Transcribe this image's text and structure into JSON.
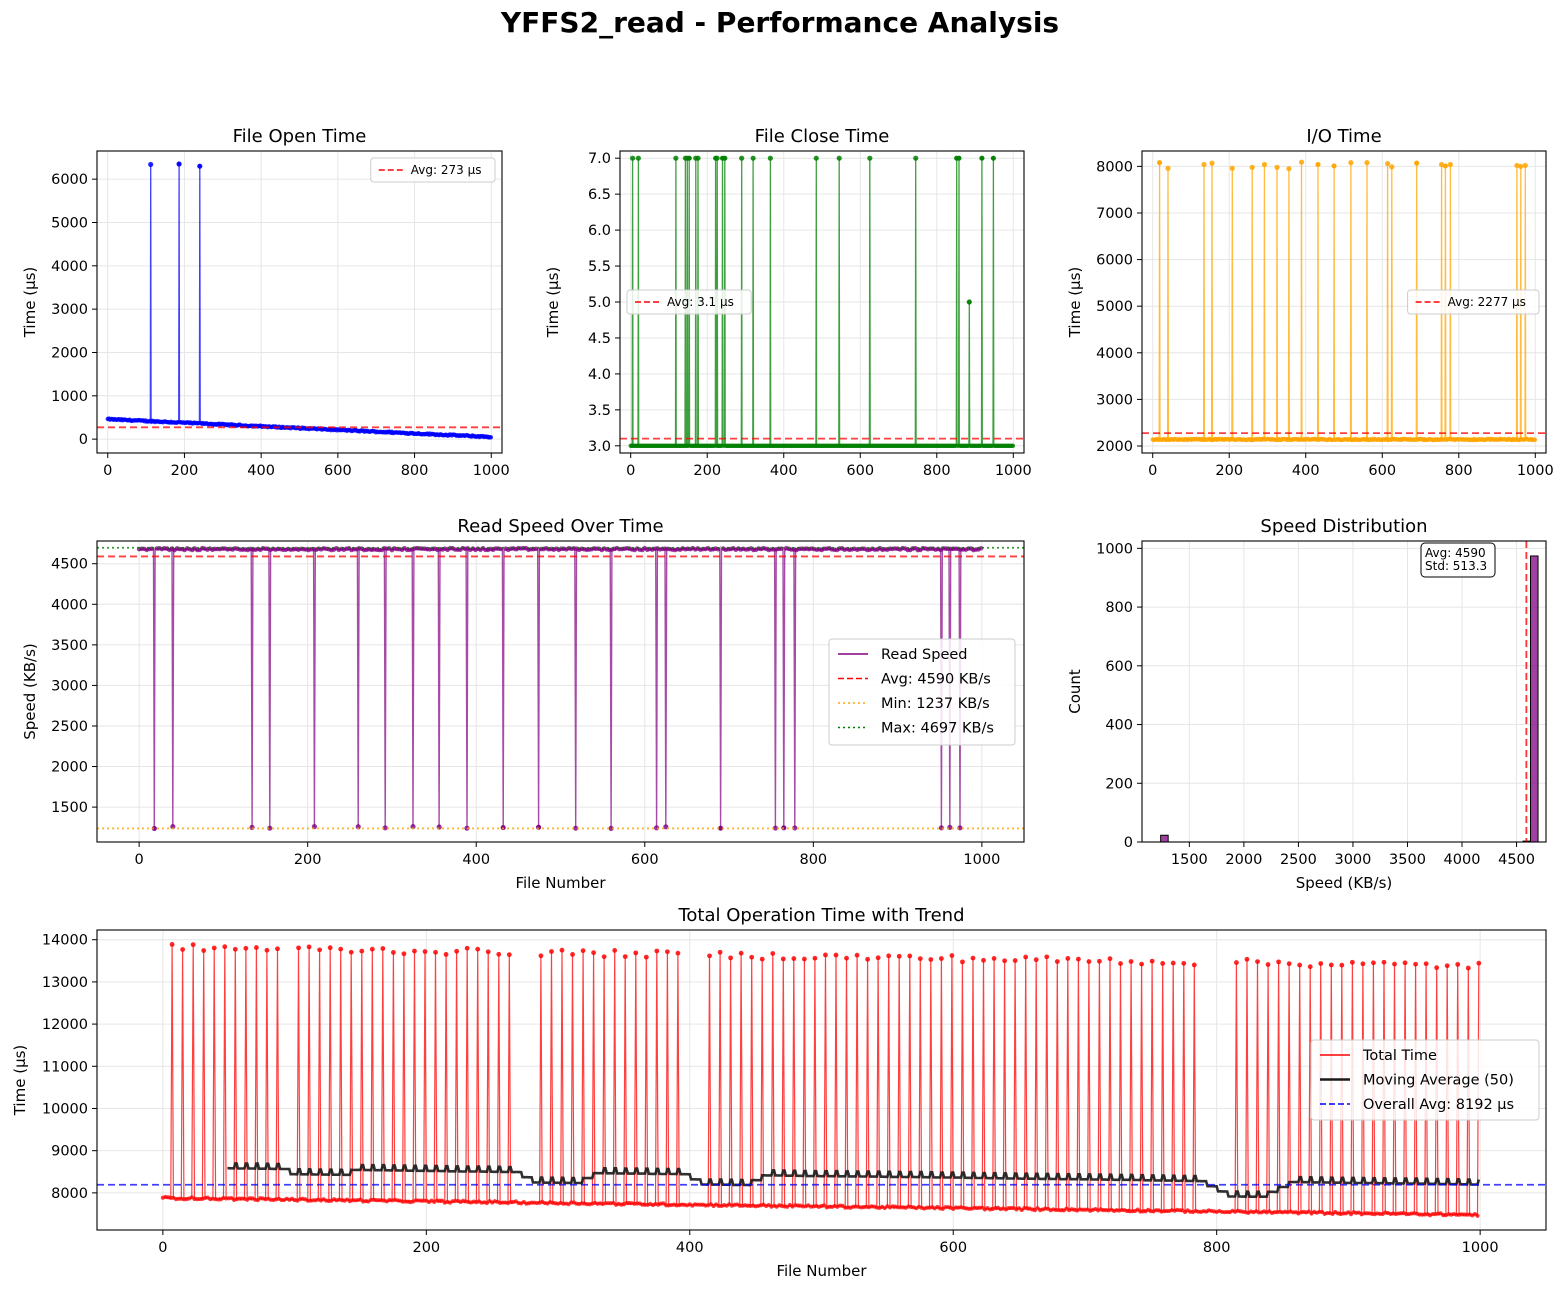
{
  "title": "YFFS2_read - Performance Analysis",
  "colors": {
    "blue": "#0000ff",
    "green": "#008000",
    "orange": "#ffa500",
    "purple": "#800080",
    "red": "#ff0000",
    "avg": "#ff0000",
    "bar": "#800080",
    "trend": "#1a1a1a",
    "overall": "#0000ff",
    "grid": "#e6e6e6"
  },
  "chart_data": [
    {
      "id": "open",
      "type": "line",
      "title": "File Open Time",
      "xlabel": "",
      "ylabel": "Time (μs)",
      "xlim": [
        -28,
        1028
      ],
      "ylim": [
        -320,
        6650
      ],
      "xticks": [
        0,
        200,
        400,
        600,
        800,
        1000
      ],
      "yticks": [
        0,
        1000,
        2000,
        3000,
        4000,
        5000,
        6000
      ],
      "n": 1000,
      "baseline": {
        "start": 460,
        "end": 50,
        "noise": 15
      },
      "spikes": [
        {
          "x": 112,
          "y": 6340
        },
        {
          "x": 186,
          "y": 6350
        },
        {
          "x": 240,
          "y": 6300
        }
      ],
      "avg": 273,
      "legend": [
        {
          "label": "Avg: 273 μs",
          "style": "dashed"
        }
      ],
      "legend_loc": "upper right",
      "color": "blue"
    },
    {
      "id": "close",
      "type": "line",
      "title": "File Close Time",
      "xlabel": "",
      "ylabel": "Time (μs)",
      "xlim": [
        -28,
        1028
      ],
      "ylim": [
        2.9,
        7.1
      ],
      "xticks": [
        0,
        200,
        400,
        600,
        800,
        1000
      ],
      "yticks": [
        3.0,
        3.5,
        4.0,
        4.5,
        5.0,
        5.5,
        6.0,
        6.5,
        7.0
      ],
      "n": 1000,
      "baseline": {
        "start": 3,
        "end": 3,
        "noise": 0
      },
      "spikes": [
        {
          "x": 5,
          "y": 7
        },
        {
          "x": 20,
          "y": 7
        },
        {
          "x": 118,
          "y": 7
        },
        {
          "x": 143,
          "y": 7
        },
        {
          "x": 148,
          "y": 7
        },
        {
          "x": 153,
          "y": 7
        },
        {
          "x": 170,
          "y": 7
        },
        {
          "x": 176,
          "y": 7
        },
        {
          "x": 222,
          "y": 7
        },
        {
          "x": 226,
          "y": 7
        },
        {
          "x": 240,
          "y": 7
        },
        {
          "x": 246,
          "y": 7
        },
        {
          "x": 290,
          "y": 7
        },
        {
          "x": 320,
          "y": 7
        },
        {
          "x": 365,
          "y": 7
        },
        {
          "x": 485,
          "y": 7
        },
        {
          "x": 545,
          "y": 7
        },
        {
          "x": 625,
          "y": 7
        },
        {
          "x": 745,
          "y": 7
        },
        {
          "x": 852,
          "y": 7
        },
        {
          "x": 858,
          "y": 7
        },
        {
          "x": 885,
          "y": 5
        },
        {
          "x": 918,
          "y": 7
        },
        {
          "x": 948,
          "y": 7
        }
      ],
      "avg": 3.1,
      "legend": [
        {
          "label": "Avg: 3.1 μs",
          "style": "dashed"
        }
      ],
      "legend_loc": "center left",
      "color": "green"
    },
    {
      "id": "io",
      "type": "line",
      "title": "I/O Time",
      "xlabel": "",
      "ylabel": "Time (μs)",
      "xlim": [
        -28,
        1028
      ],
      "ylim": [
        1850,
        8330
      ],
      "xticks": [
        0,
        200,
        400,
        600,
        800,
        1000
      ],
      "yticks": [
        2000,
        3000,
        4000,
        5000,
        6000,
        7000,
        8000
      ],
      "n": 1000,
      "baseline": {
        "start": 2140,
        "end": 2140,
        "noise": 12
      },
      "spikes": [
        {
          "x": 18,
          "y": 8080
        },
        {
          "x": 40,
          "y": 7960
        },
        {
          "x": 134,
          "y": 8040
        },
        {
          "x": 155,
          "y": 8070
        },
        {
          "x": 208,
          "y": 7960
        },
        {
          "x": 260,
          "y": 7980
        },
        {
          "x": 292,
          "y": 8040
        },
        {
          "x": 325,
          "y": 7980
        },
        {
          "x": 356,
          "y": 7950
        },
        {
          "x": 389,
          "y": 8090
        },
        {
          "x": 432,
          "y": 8040
        },
        {
          "x": 474,
          "y": 8010
        },
        {
          "x": 518,
          "y": 8080
        },
        {
          "x": 560,
          "y": 8080
        },
        {
          "x": 614,
          "y": 8060
        },
        {
          "x": 625,
          "y": 7990
        },
        {
          "x": 690,
          "y": 8070
        },
        {
          "x": 755,
          "y": 8040
        },
        {
          "x": 765,
          "y": 8010
        },
        {
          "x": 778,
          "y": 8040
        },
        {
          "x": 952,
          "y": 8020
        },
        {
          "x": 962,
          "y": 8000
        },
        {
          "x": 974,
          "y": 8020
        }
      ],
      "avg": 2277,
      "legend": [
        {
          "label": "Avg: 2277 μs",
          "style": "dashed"
        }
      ],
      "legend_loc": "center right",
      "color": "orange"
    },
    {
      "id": "speed",
      "type": "line",
      "title": "Read Speed Over Time",
      "xlabel": "File Number",
      "ylabel": "Speed (KB/s)",
      "xlim": [
        -50,
        1050
      ],
      "ylim": [
        1070,
        4780
      ],
      "xticks": [
        0,
        200,
        400,
        600,
        800,
        1000
      ],
      "yticks": [
        1500,
        2000,
        2500,
        3000,
        3500,
        4000,
        4500
      ],
      "n": 1000,
      "baseline": {
        "start": 4680,
        "end": 4680,
        "noise": 12
      },
      "spikes": [
        {
          "x": 18,
          "y": 1237
        },
        {
          "x": 40,
          "y": 1260
        },
        {
          "x": 134,
          "y": 1250
        },
        {
          "x": 155,
          "y": 1240
        },
        {
          "x": 208,
          "y": 1260
        },
        {
          "x": 260,
          "y": 1258
        },
        {
          "x": 292,
          "y": 1245
        },
        {
          "x": 325,
          "y": 1260
        },
        {
          "x": 356,
          "y": 1255
        },
        {
          "x": 389,
          "y": 1240
        },
        {
          "x": 432,
          "y": 1248
        },
        {
          "x": 474,
          "y": 1252
        },
        {
          "x": 518,
          "y": 1240
        },
        {
          "x": 560,
          "y": 1238
        },
        {
          "x": 614,
          "y": 1245
        },
        {
          "x": 625,
          "y": 1257
        },
        {
          "x": 690,
          "y": 1240
        },
        {
          "x": 755,
          "y": 1242
        },
        {
          "x": 765,
          "y": 1245
        },
        {
          "x": 778,
          "y": 1243
        },
        {
          "x": 952,
          "y": 1245
        },
        {
          "x": 962,
          "y": 1250
        },
        {
          "x": 974,
          "y": 1245
        }
      ],
      "avg": 4590,
      "min": 1237,
      "max": 4697,
      "legend": [
        {
          "label": "Read Speed",
          "style": "solid"
        },
        {
          "label": "Avg: 4590 KB/s",
          "style": "dashed"
        },
        {
          "label": "Min: 1237 KB/s",
          "style": "dotted-orange"
        },
        {
          "label": "Max: 4697 KB/s",
          "style": "dotted-green"
        }
      ],
      "legend_loc": "center right",
      "color": "purple"
    },
    {
      "id": "hist",
      "type": "bar",
      "title": "Speed Distribution",
      "xlabel": "Speed (KB/s)",
      "ylabel": "Count",
      "xlim": [
        1066,
        4770
      ],
      "ylim": [
        0,
        1025
      ],
      "xticks": [
        1500,
        2000,
        2500,
        3000,
        3500,
        4000,
        4500
      ],
      "yticks": [
        0,
        200,
        400,
        600,
        800,
        1000
      ],
      "bins": [
        {
          "x0": 1237,
          "x1": 1306,
          "count": 23
        },
        {
          "x0": 4560,
          "x1": 4628,
          "count": 3
        },
        {
          "x0": 4628,
          "x1": 4697,
          "count": 974
        }
      ],
      "avg": 4590,
      "std": 513.3,
      "annotation": [
        "Avg: 4590",
        "Std: 513.3"
      ]
    },
    {
      "id": "total",
      "type": "line",
      "title": "Total Operation Time with Trend",
      "xlabel": "File Number",
      "ylabel": "Time (μs)",
      "xlim": [
        -50,
        1050
      ],
      "ylim": [
        7120,
        14230
      ],
      "xticks": [
        0,
        200,
        400,
        600,
        800,
        1000
      ],
      "yticks": [
        8000,
        9000,
        10000,
        11000,
        12000,
        13000,
        14000
      ],
      "n": 1000,
      "baseline": {
        "start": 7880,
        "end": 7480,
        "noise": 25
      },
      "spike_period": 8,
      "spike_start": 7,
      "spike_gaps": [
        [
          88,
          95
        ],
        [
          265,
          280
        ],
        [
          395,
          408
        ],
        [
          785,
          808
        ]
      ],
      "spike_high_start": 13820,
      "spike_high_end": 13380,
      "moving_window": 50,
      "overall_avg": 8192,
      "legend": [
        {
          "label": "Total Time",
          "style": "solid-red"
        },
        {
          "label": "Moving Average (50)",
          "style": "solid-black"
        },
        {
          "label": "Overall Avg: 8192 μs",
          "style": "dashed-blue"
        }
      ],
      "legend_loc": "center right",
      "color": "red"
    }
  ]
}
